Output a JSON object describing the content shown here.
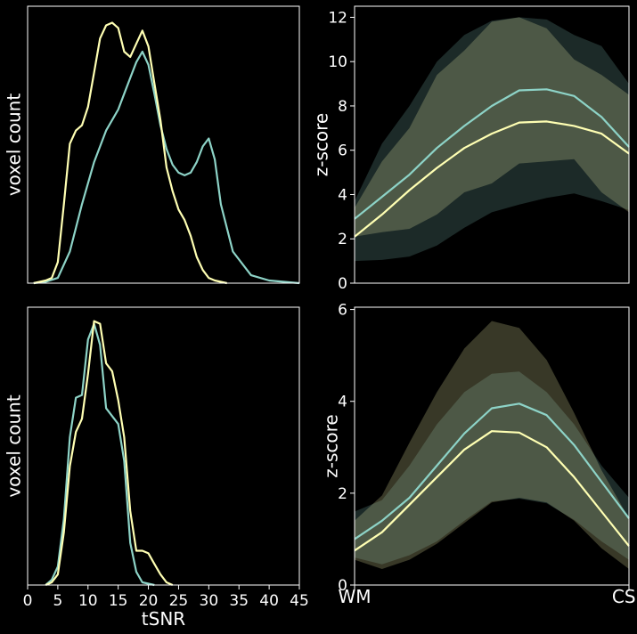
{
  "colors": {
    "background": "#000000",
    "series_teal": "#8dd3c7",
    "series_yellow": "#ffffb3",
    "axes": "#ffffff"
  },
  "chart_data": [
    {
      "type": "line",
      "panel": "top-left",
      "xlabel": "",
      "ylabel": "voxel count",
      "xlim": [
        0,
        45
      ],
      "ylim": [
        0,
        1
      ],
      "x_ticks_shown": false,
      "y_ticks_shown": false,
      "grid": false,
      "series": [
        {
          "color": "#8dd3c7",
          "x": [
            1,
            3,
            5,
            7,
            9,
            11,
            13,
            15,
            16,
            17,
            18,
            19,
            20,
            21,
            22,
            23,
            24,
            25,
            26,
            27,
            28,
            29,
            30,
            31,
            32,
            34,
            37,
            40,
            45
          ],
          "y": [
            0,
            0.005,
            0.02,
            0.12,
            0.3,
            0.46,
            0.58,
            0.66,
            0.72,
            0.78,
            0.84,
            0.88,
            0.83,
            0.72,
            0.6,
            0.51,
            0.45,
            0.42,
            0.41,
            0.42,
            0.46,
            0.52,
            0.55,
            0.47,
            0.3,
            0.12,
            0.03,
            0.01,
            0
          ]
        },
        {
          "color": "#ffffb3",
          "x": [
            1,
            2,
            3,
            4,
            5,
            6,
            7,
            8,
            9,
            10,
            11,
            12,
            13,
            14,
            15,
            16,
            17,
            18,
            19,
            20,
            21,
            22,
            23,
            24,
            25,
            26,
            27,
            28,
            29,
            30,
            31,
            32,
            33
          ],
          "y": [
            0,
            0.005,
            0.01,
            0.02,
            0.08,
            0.3,
            0.53,
            0.58,
            0.6,
            0.67,
            0.8,
            0.93,
            0.98,
            0.99,
            0.97,
            0.88,
            0.86,
            0.91,
            0.96,
            0.9,
            0.76,
            0.62,
            0.44,
            0.35,
            0.28,
            0.24,
            0.18,
            0.1,
            0.05,
            0.02,
            0.01,
            0.005,
            0
          ]
        }
      ]
    },
    {
      "type": "area",
      "panel": "top-right",
      "xlabel": "",
      "ylabel": "z-score",
      "xlim": [
        0,
        10
      ],
      "ylim": [
        0,
        12.5
      ],
      "yticks": [
        0,
        2,
        4,
        6,
        8,
        10,
        12
      ],
      "x_ticks_shown": false,
      "grid": false,
      "x": [
        0,
        1,
        2,
        3,
        4,
        5,
        6,
        7,
        8,
        9,
        10
      ],
      "series": [
        {
          "color": "#8dd3c7",
          "mean": [
            2.9,
            3.9,
            4.9,
            6.1,
            7.1,
            8.0,
            8.7,
            8.75,
            8.45,
            7.5,
            6.15
          ],
          "lower": [
            1.0,
            1.05,
            1.2,
            1.7,
            2.5,
            3.2,
            3.55,
            3.85,
            4.05,
            3.7,
            3.3
          ],
          "upper": [
            3.7,
            6.3,
            8.0,
            10.0,
            11.2,
            11.85,
            12.0,
            11.9,
            11.2,
            10.7,
            9.0
          ]
        },
        {
          "color": "#ffffb3",
          "mean": [
            2.1,
            3.1,
            4.2,
            5.2,
            6.1,
            6.75,
            7.25,
            7.3,
            7.1,
            6.75,
            5.85
          ],
          "lower": [
            2.1,
            2.3,
            2.45,
            3.1,
            4.1,
            4.5,
            5.4,
            5.5,
            5.6,
            4.1,
            3.2
          ],
          "upper": [
            3.4,
            5.5,
            7.0,
            9.4,
            10.5,
            11.8,
            12.0,
            11.5,
            10.1,
            9.4,
            8.5
          ]
        }
      ]
    },
    {
      "type": "line",
      "panel": "bottom-left",
      "xlabel": "tSNR",
      "ylabel": "voxel count",
      "xlim": [
        0,
        45
      ],
      "ylim": [
        0,
        1
      ],
      "xticks": [
        0,
        5,
        10,
        15,
        20,
        25,
        30,
        35,
        40,
        45
      ],
      "y_ticks_shown": false,
      "grid": false,
      "series": [
        {
          "color": "#8dd3c7",
          "x": [
            3,
            4,
            5,
            6,
            7,
            8,
            9,
            10,
            11,
            12,
            13,
            14,
            15,
            16,
            17,
            18,
            19,
            20,
            21
          ],
          "y": [
            0,
            0.02,
            0.07,
            0.25,
            0.56,
            0.71,
            0.72,
            0.93,
            0.99,
            0.91,
            0.67,
            0.64,
            0.61,
            0.47,
            0.16,
            0.05,
            0.01,
            0.005,
            0
          ]
        },
        {
          "color": "#ffffb3",
          "x": [
            3,
            4,
            5,
            6,
            7,
            8,
            9,
            10,
            11,
            12,
            13,
            14,
            15,
            16,
            17,
            18,
            19,
            20,
            21,
            22,
            23,
            24
          ],
          "y": [
            0,
            0.01,
            0.04,
            0.2,
            0.45,
            0.58,
            0.63,
            0.8,
            1.0,
            0.99,
            0.84,
            0.81,
            0.7,
            0.56,
            0.28,
            0.13,
            0.13,
            0.12,
            0.08,
            0.04,
            0.01,
            0
          ]
        }
      ]
    },
    {
      "type": "area",
      "panel": "bottom-right",
      "xlabel": "",
      "ylabel": "z-score",
      "xlim": [
        0,
        10
      ],
      "ylim": [
        0,
        6.05
      ],
      "yticks": [
        0,
        2,
        4,
        6
      ],
      "xtick_labels": [
        {
          "at": 0,
          "label": "WM"
        },
        {
          "at": 10,
          "label": "CSF"
        }
      ],
      "grid": false,
      "x": [
        0,
        1,
        2,
        3,
        4,
        5,
        6,
        7,
        8,
        9,
        10
      ],
      "series": [
        {
          "color": "#8dd3c7",
          "mean": [
            1.0,
            1.4,
            1.9,
            2.6,
            3.3,
            3.85,
            3.95,
            3.7,
            3.05,
            2.25,
            1.45
          ],
          "lower": [
            0.6,
            0.45,
            0.65,
            0.95,
            1.4,
            1.82,
            1.88,
            1.78,
            1.42,
            0.95,
            0.55
          ],
          "upper": [
            1.6,
            1.85,
            2.6,
            3.5,
            4.2,
            4.6,
            4.65,
            4.2,
            3.5,
            2.6,
            1.9
          ]
        },
        {
          "color": "#ffffb3",
          "mean": [
            0.75,
            1.15,
            1.75,
            2.35,
            2.95,
            3.35,
            3.32,
            3.0,
            2.35,
            1.6,
            0.85
          ],
          "lower": [
            0.55,
            0.35,
            0.55,
            0.9,
            1.35,
            1.8,
            1.9,
            1.8,
            1.4,
            0.8,
            0.35
          ],
          "upper": [
            1.4,
            1.95,
            3.1,
            4.2,
            5.15,
            5.75,
            5.6,
            4.9,
            3.75,
            2.5,
            1.45
          ]
        }
      ]
    }
  ]
}
